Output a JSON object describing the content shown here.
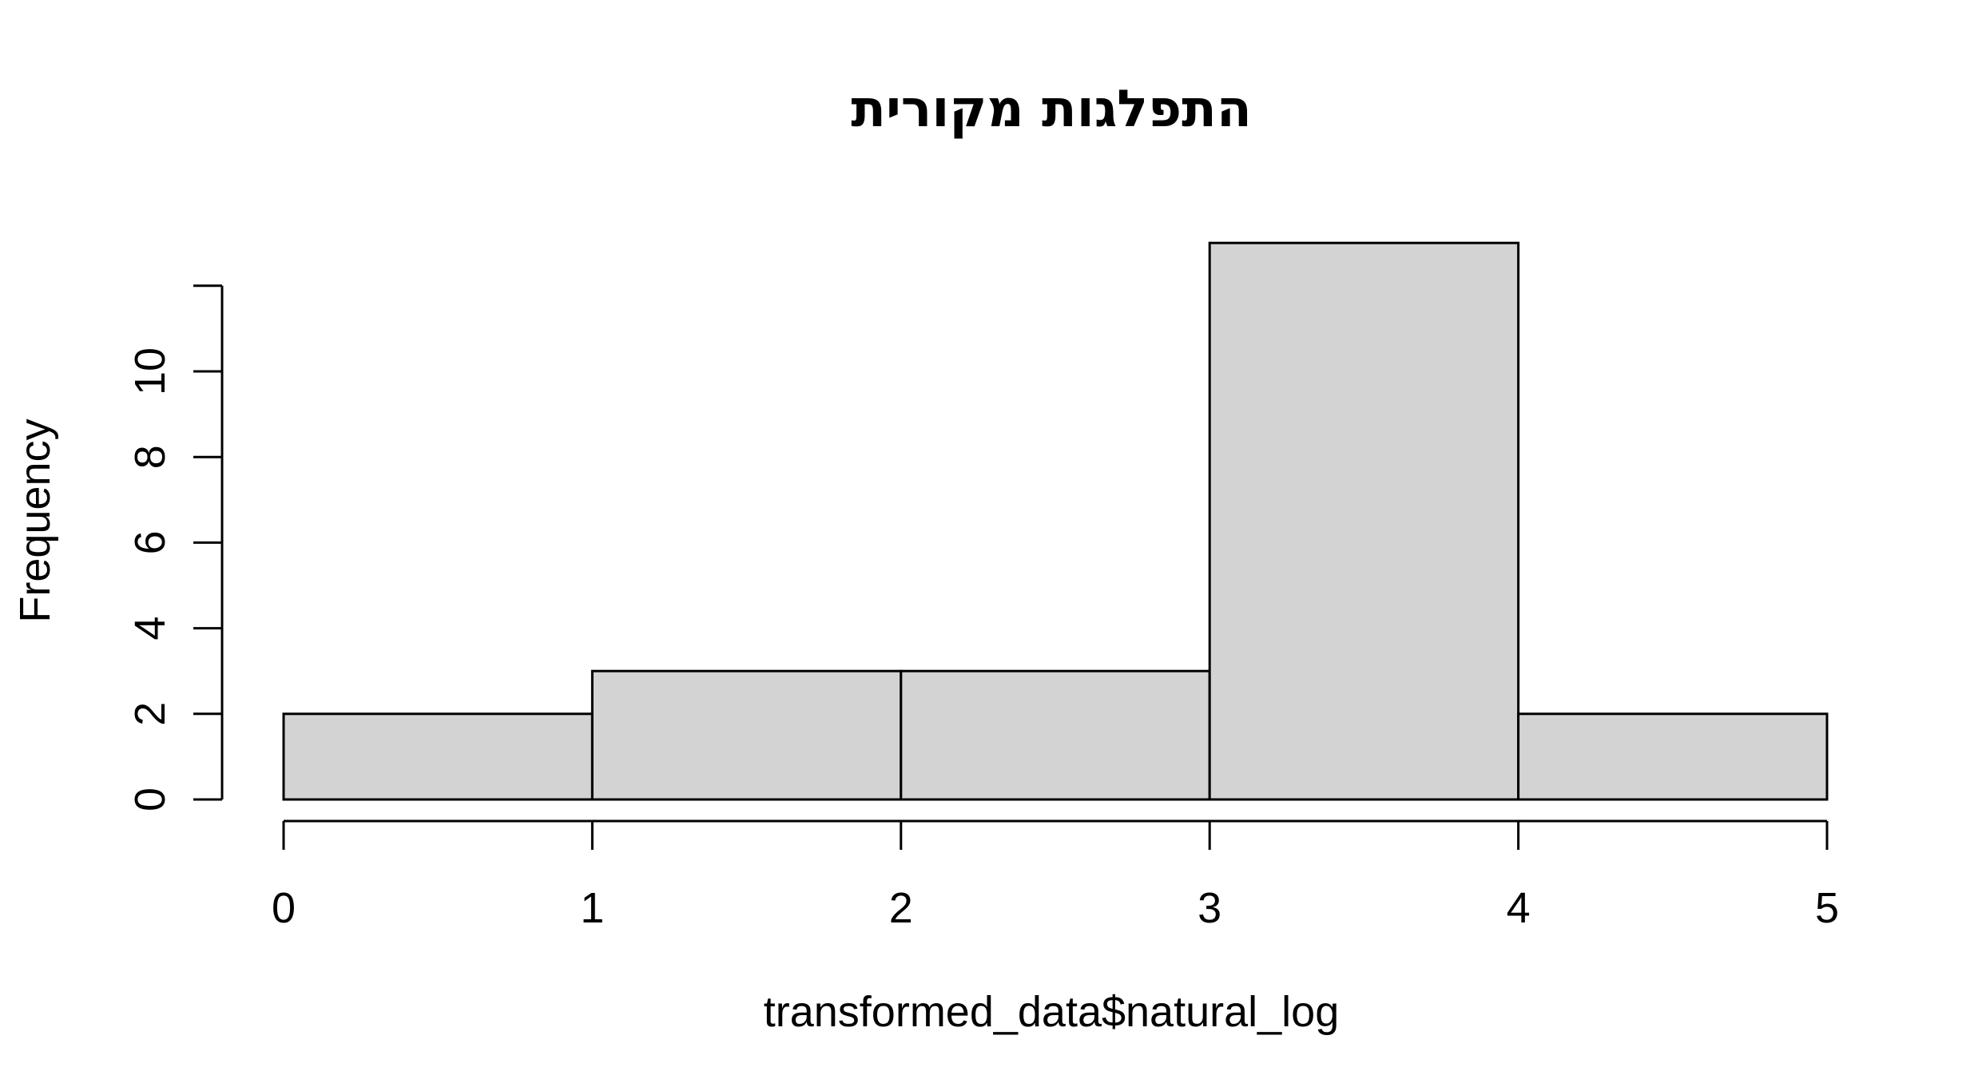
{
  "chart_data": {
    "type": "bar",
    "title": "התפלגות מקורית",
    "xlabel": "transformed_data$natural_log",
    "ylabel": "Frequency",
    "bins": [
      [
        0,
        1
      ],
      [
        1,
        2
      ],
      [
        2,
        3
      ],
      [
        3,
        4
      ],
      [
        4,
        5
      ]
    ],
    "values": [
      2,
      3,
      3,
      13,
      2
    ],
    "x_ticks": [
      0,
      1,
      2,
      3,
      4,
      5
    ],
    "y_ticks": [
      0,
      2,
      4,
      6,
      8,
      10,
      12
    ],
    "xlim": [
      0,
      5
    ],
    "ylim": [
      0,
      13
    ],
    "grid": false,
    "colors": {
      "bar_fill": "#d3d3d3",
      "bar_stroke": "#000000"
    }
  }
}
